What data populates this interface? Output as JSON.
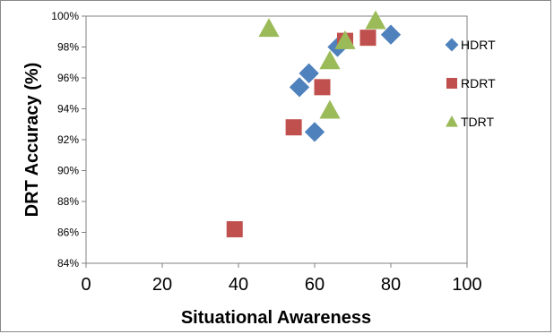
{
  "chart_data": {
    "type": "scatter",
    "xlabel": "Situational Awareness",
    "ylabel": "DRT Accuracy (%)",
    "xlim": [
      0,
      100
    ],
    "ylim": [
      84,
      100
    ],
    "x_ticks": [
      0,
      20,
      40,
      60,
      80,
      100
    ],
    "y_ticks": [
      84,
      86,
      88,
      90,
      92,
      94,
      96,
      98,
      100
    ],
    "y_tick_labels": [
      "84%",
      "86%",
      "88%",
      "90%",
      "92%",
      "94%",
      "96%",
      "98%",
      "100%"
    ],
    "grid": false,
    "legend_position": "right",
    "series": [
      {
        "name": "HDRT",
        "marker": "diamond",
        "color": "#4F81BD",
        "points": [
          [
            56,
            95.4
          ],
          [
            58.5,
            96.3
          ],
          [
            60,
            92.5
          ],
          [
            66,
            98.0
          ],
          [
            80,
            98.8
          ]
        ]
      },
      {
        "name": "RDRT",
        "marker": "square",
        "color": "#C0504D",
        "points": [
          [
            39,
            86.2
          ],
          [
            54.5,
            92.8
          ],
          [
            62,
            95.4
          ],
          [
            68,
            98.4
          ],
          [
            74,
            98.6
          ]
        ]
      },
      {
        "name": "TDRT",
        "marker": "triangle",
        "color": "#9BBB59",
        "points": [
          [
            48,
            99.2
          ],
          [
            64,
            97.1
          ],
          [
            64,
            93.9
          ],
          [
            68,
            98.4
          ],
          [
            76,
            99.7
          ]
        ]
      }
    ]
  }
}
